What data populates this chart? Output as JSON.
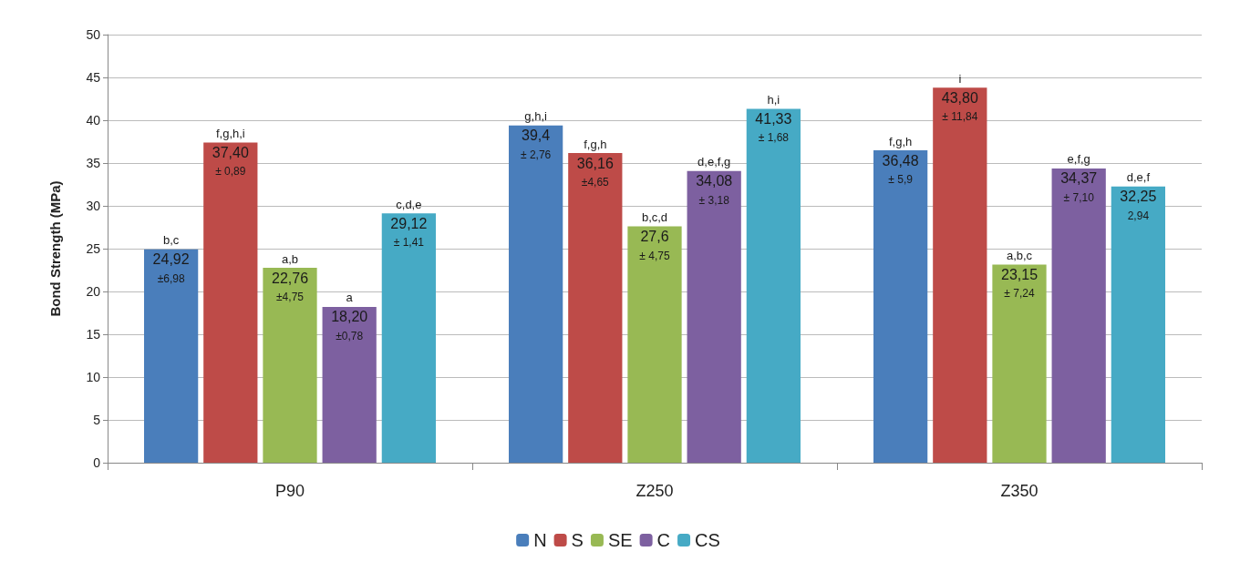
{
  "chart_data": {
    "type": "bar",
    "ylabel": "Bond Strength (MPa)",
    "categories": [
      "P90",
      "Z250",
      "Z350"
    ],
    "series": [
      {
        "name": "N",
        "color": "#4a7ebb",
        "values": [
          24.92,
          39.4,
          36.48
        ],
        "value_labels": [
          "b,c\n24,92\n±6,98",
          "g,h,i\n39,4\n± 2,76",
          "f,g,h\n36,48\n± 5,9"
        ]
      },
      {
        "name": "S",
        "color": "#be4b48",
        "values": [
          37.4,
          36.16,
          43.8
        ],
        "value_labels": [
          "f,g,h,i\n37,40\n± 0,89",
          "f,g,h\n36,16\n±4,65",
          "i\n43,80\n± 11,84"
        ]
      },
      {
        "name": "SE",
        "color": "#98b954",
        "values": [
          22.76,
          27.6,
          23.15
        ],
        "value_labels": [
          "a,b\n22,76\n±4,75",
          "b,c,d\n27,6\n± 4,75",
          "a,b,c\n23,15\n± 7,24"
        ]
      },
      {
        "name": "C",
        "color": "#7d60a0",
        "values": [
          18.2,
          34.08,
          34.37
        ],
        "value_labels": [
          "a\n18,20\n±0,78",
          "d,e,f,g\n34,08\n± 3,18",
          "e,f,g\n34,37\n± 7,10"
        ]
      },
      {
        "name": "CS",
        "color": "#46aac5",
        "values": [
          29.12,
          41.33,
          32.25
        ],
        "value_labels": [
          "c,d,e\n29,12\n± 1,41",
          "h,i\n41,33\n± 1,68",
          "d,e,f\n32,25\n2,94"
        ]
      }
    ],
    "ylim": [
      0,
      50
    ],
    "yticks": [
      0,
      5,
      10,
      15,
      20,
      25,
      30,
      35,
      40,
      45,
      50
    ],
    "grid": "y",
    "legend": "bottom"
  }
}
